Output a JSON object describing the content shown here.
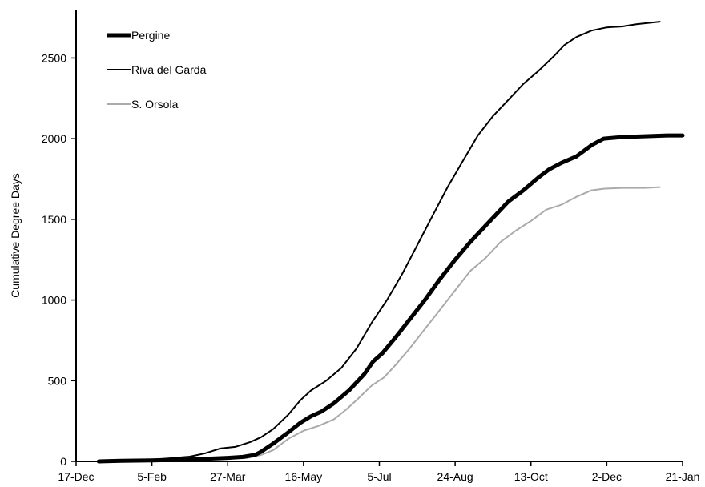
{
  "chart_data": {
    "type": "line",
    "title": "",
    "xlabel": "",
    "ylabel": "Cumulative Degree Days",
    "x_ticks": [
      "17-Dec",
      "5-Feb",
      "27-Mar",
      "16-May",
      "5-Jul",
      "24-Aug",
      "13-Oct",
      "2-Dec",
      "21-Jan"
    ],
    "x_range_days": [
      0,
      400
    ],
    "ylim": [
      0,
      2800
    ],
    "y_ticks": [
      0,
      500,
      1000,
      1500,
      2000,
      2500
    ],
    "grid": false,
    "legend_position": "top-left",
    "series": [
      {
        "name": "Pergine",
        "color": "#000000",
        "style": "thick",
        "points": [
          [
            15,
            0
          ],
          [
            30,
            4
          ],
          [
            50,
            6
          ],
          [
            60,
            8
          ],
          [
            80,
            14
          ],
          [
            100,
            22
          ],
          [
            110,
            28
          ],
          [
            118,
            40
          ],
          [
            122,
            60
          ],
          [
            130,
            110
          ],
          [
            140,
            180
          ],
          [
            148,
            240
          ],
          [
            155,
            280
          ],
          [
            162,
            310
          ],
          [
            170,
            360
          ],
          [
            180,
            440
          ],
          [
            190,
            540
          ],
          [
            196,
            620
          ],
          [
            202,
            670
          ],
          [
            210,
            760
          ],
          [
            220,
            880
          ],
          [
            230,
            1000
          ],
          [
            240,
            1130
          ],
          [
            250,
            1250
          ],
          [
            260,
            1360
          ],
          [
            270,
            1460
          ],
          [
            280,
            1560
          ],
          [
            285,
            1610
          ],
          [
            295,
            1680
          ],
          [
            305,
            1760
          ],
          [
            312,
            1810
          ],
          [
            320,
            1850
          ],
          [
            330,
            1890
          ],
          [
            340,
            1960
          ],
          [
            348,
            2000
          ],
          [
            360,
            2010
          ],
          [
            375,
            2015
          ],
          [
            390,
            2020
          ],
          [
            400,
            2020
          ]
        ]
      },
      {
        "name": "Riva del Garda",
        "color": "#000000",
        "style": "thin",
        "points": [
          [
            15,
            0
          ],
          [
            30,
            6
          ],
          [
            50,
            12
          ],
          [
            60,
            18
          ],
          [
            75,
            30
          ],
          [
            85,
            50
          ],
          [
            95,
            80
          ],
          [
            105,
            90
          ],
          [
            115,
            120
          ],
          [
            122,
            150
          ],
          [
            130,
            200
          ],
          [
            140,
            290
          ],
          [
            148,
            380
          ],
          [
            155,
            440
          ],
          [
            165,
            500
          ],
          [
            175,
            580
          ],
          [
            185,
            700
          ],
          [
            195,
            860
          ],
          [
            205,
            1000
          ],
          [
            215,
            1160
          ],
          [
            225,
            1340
          ],
          [
            235,
            1520
          ],
          [
            245,
            1700
          ],
          [
            255,
            1860
          ],
          [
            265,
            2020
          ],
          [
            275,
            2140
          ],
          [
            285,
            2240
          ],
          [
            295,
            2340
          ],
          [
            305,
            2420
          ],
          [
            315,
            2510
          ],
          [
            322,
            2580
          ],
          [
            330,
            2630
          ],
          [
            340,
            2670
          ],
          [
            350,
            2690
          ],
          [
            360,
            2695
          ],
          [
            370,
            2710
          ],
          [
            380,
            2720
          ],
          [
            385,
            2725
          ]
        ]
      },
      {
        "name": "S. Orsola",
        "color": "#aaaaaa",
        "style": "thin",
        "points": [
          [
            15,
            0
          ],
          [
            30,
            2
          ],
          [
            50,
            4
          ],
          [
            60,
            6
          ],
          [
            80,
            10
          ],
          [
            100,
            16
          ],
          [
            112,
            20
          ],
          [
            122,
            40
          ],
          [
            130,
            70
          ],
          [
            140,
            140
          ],
          [
            150,
            190
          ],
          [
            160,
            220
          ],
          [
            170,
            260
          ],
          [
            178,
            320
          ],
          [
            185,
            380
          ],
          [
            195,
            470
          ],
          [
            203,
            520
          ],
          [
            210,
            590
          ],
          [
            220,
            700
          ],
          [
            230,
            820
          ],
          [
            240,
            940
          ],
          [
            250,
            1060
          ],
          [
            260,
            1180
          ],
          [
            270,
            1260
          ],
          [
            280,
            1360
          ],
          [
            290,
            1430
          ],
          [
            300,
            1490
          ],
          [
            310,
            1560
          ],
          [
            320,
            1590
          ],
          [
            330,
            1640
          ],
          [
            340,
            1680
          ],
          [
            348,
            1690
          ],
          [
            360,
            1695
          ],
          [
            375,
            1695
          ],
          [
            385,
            1700
          ]
        ]
      }
    ]
  }
}
